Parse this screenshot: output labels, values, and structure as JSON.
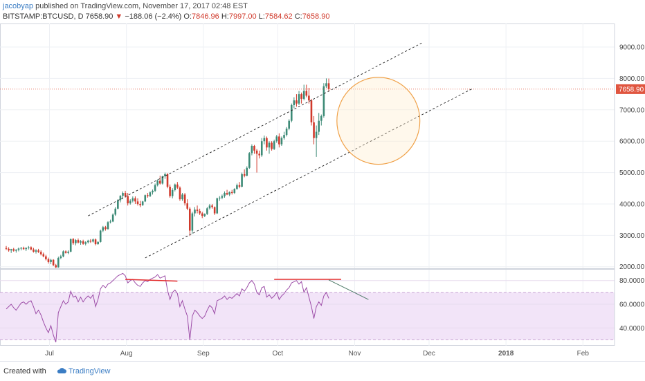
{
  "header": {
    "author": "jacobyap",
    "published": "published on TradingView.com, November 17, 2017 02:48 EST"
  },
  "symbol_line": {
    "symbol": "BITSTAMP:BTCUSD, D",
    "last": "7658.90",
    "change": "−188.06 (−2.4%)",
    "o_label": "O:",
    "o": "7846.96",
    "h_label": "H:",
    "h": "7997.00",
    "l_label": "L:",
    "l": "7584.62",
    "c_label": "C:",
    "c": "7658.90"
  },
  "footer": {
    "created_with": "Created with",
    "brand": "TradingView"
  },
  "colors": {
    "up": "#3c8a76",
    "down": "#d0392b",
    "rsi_line": "#9c4ca7",
    "rsi_band": "#f2e4f8",
    "circle": "#f0a24a",
    "divergence": "#e32d2d",
    "price_line": "#e0553f"
  },
  "chart_data": [
    {
      "type": "candlestick",
      "symbol": "BITSTAMP:BTCUSD",
      "interval": "D",
      "x_tick_labels": [
        "Jul",
        "Aug",
        "Sep",
        "Oct",
        "Nov",
        "Dec",
        "2018",
        "Feb"
      ],
      "y_tick_labels": [
        "2000.00",
        "3000.00",
        "4000.00",
        "5000.00",
        "6000.00",
        "7000.00",
        "8000.00",
        "9000.00"
      ],
      "ylim": [
        1950,
        9750
      ],
      "last_price_label": "7658.90",
      "grid": true,
      "ohlc_daily_from_2017-06-25": [
        [
          2596,
          2660,
          2530,
          2570
        ],
        [
          2570,
          2620,
          2480,
          2520
        ],
        [
          2520,
          2570,
          2440,
          2560
        ],
        [
          2560,
          2600,
          2480,
          2510
        ],
        [
          2510,
          2560,
          2450,
          2540
        ],
        [
          2540,
          2610,
          2490,
          2580
        ],
        [
          2580,
          2630,
          2520,
          2600
        ],
        [
          2600,
          2640,
          2540,
          2560
        ],
        [
          2560,
          2620,
          2500,
          2600
        ],
        [
          2600,
          2660,
          2550,
          2620
        ],
        [
          2620,
          2650,
          2520,
          2550
        ],
        [
          2550,
          2600,
          2450,
          2480
        ],
        [
          2480,
          2560,
          2420,
          2520
        ],
        [
          2520,
          2570,
          2440,
          2470
        ],
        [
          2470,
          2520,
          2360,
          2400
        ],
        [
          2400,
          2450,
          2300,
          2330
        ],
        [
          2330,
          2380,
          2200,
          2240
        ],
        [
          2240,
          2290,
          2100,
          2150
        ],
        [
          2150,
          2250,
          2080,
          2220
        ],
        [
          2220,
          2240,
          2020,
          2050
        ],
        [
          2050,
          2090,
          1960,
          1980
        ],
        [
          1980,
          2320,
          1970,
          2280
        ],
        [
          2280,
          2380,
          2240,
          2330
        ],
        [
          2330,
          2520,
          2300,
          2490
        ],
        [
          2490,
          2520,
          2420,
          2440
        ],
        [
          2440,
          2520,
          2400,
          2480
        ],
        [
          2480,
          2900,
          2460,
          2880
        ],
        [
          2880,
          2920,
          2700,
          2750
        ],
        [
          2750,
          2880,
          2680,
          2850
        ],
        [
          2850,
          2900,
          2740,
          2770
        ],
        [
          2770,
          2850,
          2700,
          2810
        ],
        [
          2810,
          2860,
          2700,
          2730
        ],
        [
          2730,
          2810,
          2680,
          2780
        ],
        [
          2780,
          2860,
          2740,
          2830
        ],
        [
          2830,
          2880,
          2760,
          2800
        ],
        [
          2800,
          2900,
          2770,
          2870
        ],
        [
          2870,
          2900,
          2680,
          2720
        ],
        [
          2720,
          2810,
          2700,
          2790
        ],
        [
          2790,
          3180,
          2770,
          3150
        ],
        [
          3150,
          3300,
          3100,
          3260
        ],
        [
          3260,
          3300,
          3150,
          3200
        ],
        [
          3200,
          3450,
          3180,
          3420
        ],
        [
          3420,
          3500,
          3380,
          3440
        ],
        [
          3440,
          3700,
          3420,
          3660
        ],
        [
          3660,
          3900,
          3620,
          3850
        ],
        [
          3850,
          4150,
          3830,
          4120
        ],
        [
          4120,
          4280,
          4050,
          4260
        ],
        [
          4260,
          4400,
          4150,
          4350
        ],
        [
          4350,
          4420,
          4200,
          4250
        ],
        [
          4250,
          4350,
          3950,
          4020
        ],
        [
          4020,
          4150,
          3980,
          4100
        ],
        [
          4100,
          4240,
          4050,
          4180
        ],
        [
          4180,
          4240,
          4000,
          4080
        ],
        [
          4080,
          4180,
          3950,
          4000
        ],
        [
          4000,
          4100,
          3900,
          3960
        ],
        [
          3960,
          4100,
          3940,
          4080
        ],
        [
          4080,
          4300,
          4060,
          4280
        ],
        [
          4280,
          4350,
          4200,
          4250
        ],
        [
          4250,
          4400,
          4220,
          4370
        ],
        [
          4370,
          4460,
          4300,
          4420
        ],
        [
          4420,
          4650,
          4380,
          4600
        ],
        [
          4600,
          4780,
          4560,
          4740
        ],
        [
          4740,
          4900,
          4620,
          4650
        ],
        [
          4650,
          4900,
          4620,
          4880
        ],
        [
          4880,
          5000,
          4800,
          4950
        ],
        [
          4950,
          4980,
          4500,
          4550
        ],
        [
          4550,
          4620,
          4200,
          4250
        ],
        [
          4250,
          4500,
          4180,
          4440
        ],
        [
          4440,
          4650,
          4400,
          4620
        ],
        [
          4620,
          4700,
          4480,
          4520
        ],
        [
          4520,
          4560,
          4100,
          4150
        ],
        [
          4150,
          4350,
          4100,
          4300
        ],
        [
          4300,
          4350,
          3950,
          4020
        ],
        [
          4020,
          4150,
          3800,
          3850
        ],
        [
          3850,
          3900,
          2980,
          3150
        ],
        [
          3150,
          3750,
          3050,
          3700
        ],
        [
          3700,
          3900,
          3600,
          3820
        ],
        [
          3820,
          3950,
          3700,
          3780
        ],
        [
          3780,
          3850,
          3650,
          3700
        ],
        [
          3700,
          3750,
          3550,
          3620
        ],
        [
          3620,
          3700,
          3580,
          3680
        ],
        [
          3680,
          3900,
          3650,
          3860
        ],
        [
          3860,
          4000,
          3820,
          3950
        ],
        [
          3950,
          4000,
          3850,
          3900
        ],
        [
          3900,
          3920,
          3650,
          3700
        ],
        [
          3700,
          4200,
          3680,
          4180
        ],
        [
          4180,
          4250,
          4100,
          4200
        ],
        [
          4200,
          4300,
          4150,
          4250
        ],
        [
          4250,
          4400,
          4200,
          4350
        ],
        [
          4350,
          4450,
          4280,
          4300
        ],
        [
          4300,
          4400,
          4250,
          4380
        ],
        [
          4380,
          4450,
          4300,
          4350
        ],
        [
          4350,
          4500,
          4320,
          4480
        ],
        [
          4480,
          4650,
          4450,
          4600
        ],
        [
          4600,
          4700,
          4500,
          4550
        ],
        [
          4550,
          5000,
          4530,
          4950
        ],
        [
          4950,
          5100,
          4850,
          4900
        ],
        [
          4900,
          5200,
          4880,
          5150
        ],
        [
          5150,
          5650,
          5120,
          5620
        ],
        [
          5620,
          5900,
          5550,
          5850
        ],
        [
          5850,
          5880,
          5600,
          5700
        ],
        [
          5700,
          5750,
          5000,
          5600
        ],
        [
          5600,
          5700,
          5450,
          5550
        ],
        [
          5550,
          6100,
          5500,
          6000
        ],
        [
          6000,
          6180,
          5900,
          6100
        ],
        [
          6100,
          6150,
          5700,
          5800
        ],
        [
          5800,
          6000,
          5600,
          5950
        ],
        [
          5950,
          6000,
          5700,
          5750
        ],
        [
          5750,
          6050,
          5720,
          6000
        ],
        [
          6000,
          6200,
          5950,
          6150
        ],
        [
          6150,
          6250,
          5800,
          5900
        ],
        [
          5900,
          6150,
          5850,
          6100
        ],
        [
          6100,
          6300,
          6050,
          6200
        ],
        [
          6200,
          6450,
          6150,
          6400
        ],
        [
          6400,
          6700,
          6350,
          6650
        ],
        [
          6650,
          7200,
          6600,
          7150
        ],
        [
          7150,
          7400,
          7050,
          7300
        ],
        [
          7300,
          7500,
          7100,
          7200
        ],
        [
          7200,
          7600,
          7150,
          7500
        ],
        [
          7500,
          7550,
          7200,
          7350
        ],
        [
          7350,
          7800,
          7300,
          7600
        ],
        [
          7600,
          7800,
          7400,
          7450
        ],
        [
          7450,
          7700,
          7200,
          7300
        ],
        [
          7300,
          7350,
          6500,
          6600
        ],
        [
          6600,
          6800,
          5900,
          6100
        ],
        [
          6100,
          6500,
          5500,
          6300
        ],
        [
          6300,
          6900,
          6200,
          6650
        ],
        [
          6650,
          6850,
          6500,
          6800
        ],
        [
          6800,
          7850,
          6750,
          7750
        ],
        [
          7750,
          8000,
          7700,
          7847
        ],
        [
          7847,
          7997,
          7584,
          7659
        ]
      ],
      "overlays": {
        "upper_channel_line": [
          [
            "2017-07-28",
            3620
          ],
          [
            "2017-11-18",
            8160
          ],
          [
            "2017-12-10",
            9150
          ]
        ],
        "lower_channel_line": [
          [
            "2017-08-20",
            2280
          ],
          [
            "2017-11-12",
            5460
          ],
          [
            "2017-12-30",
            7680
          ]
        ],
        "highlight_circle": {
          "center": [
            "2017-11-22",
            6650
          ],
          "radius_days": 11
        }
      }
    },
    {
      "type": "line",
      "indicator": "RSI",
      "ylim": [
        25,
        88
      ],
      "y_tick_labels": [
        "40.0000",
        "60.0000",
        "80.0000"
      ],
      "band": [
        30,
        70
      ],
      "values": [
        56,
        58,
        60,
        57,
        55,
        58,
        61,
        62,
        60,
        62,
        63,
        58,
        52,
        55,
        51,
        45,
        40,
        36,
        42,
        34,
        28,
        53,
        58,
        63,
        60,
        62,
        71,
        66,
        67,
        62,
        66,
        62,
        65,
        67,
        65,
        68,
        58,
        64,
        73,
        76,
        74,
        77,
        78,
        80,
        82,
        84,
        85,
        86,
        84,
        78,
        80,
        81,
        78,
        76,
        75,
        78,
        80,
        79,
        81,
        82,
        83,
        85,
        82,
        83,
        84,
        72,
        64,
        70,
        72,
        69,
        58,
        63,
        56,
        50,
        30,
        50,
        55,
        53,
        50,
        48,
        50,
        55,
        59,
        57,
        52,
        63,
        64,
        65,
        67,
        64,
        66,
        65,
        67,
        69,
        67,
        73,
        71,
        74,
        78,
        80,
        77,
        70,
        68,
        74,
        75,
        66,
        68,
        65,
        67,
        70,
        64,
        67,
        69,
        72,
        74,
        78,
        79,
        80,
        77,
        79,
        70,
        74,
        66,
        58,
        48,
        58,
        62,
        59,
        67,
        70,
        65
      ],
      "overlays": {
        "divergence_lines": [
          [
            [
              "2017-08-12",
              81
            ],
            [
              "2017-09-02",
              79.5
            ]
          ],
          [
            [
              "2017-10-11",
              81
            ],
            [
              "2017-11-07",
              81
            ]
          ],
          [
            [
              "2017-11-02",
              80.5
            ],
            [
              "2017-11-18",
              64
            ]
          ]
        ]
      }
    }
  ]
}
